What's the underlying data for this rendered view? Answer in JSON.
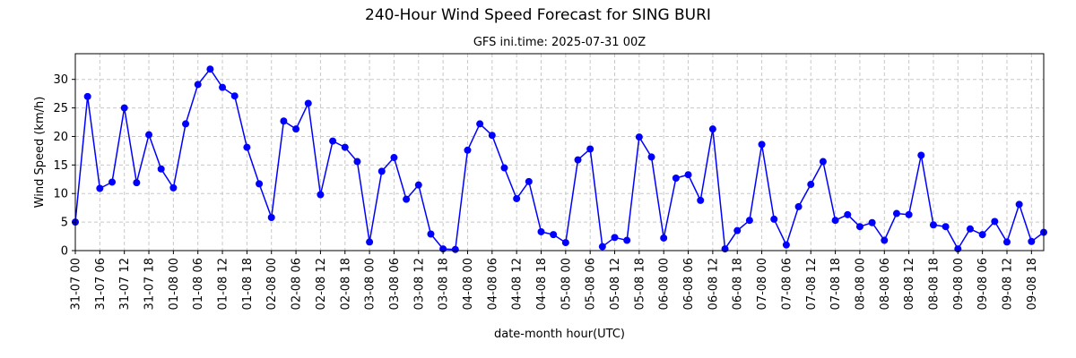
{
  "chart_data": {
    "type": "line",
    "title": "240-Hour Wind Speed Forecast for SING BURI",
    "subtitle": "GFS ini.time: 2025-07-31 00Z",
    "xlabel": "date-month hour(UTC)",
    "ylabel": "Wind Speed (km/h)",
    "ylim": [
      0,
      34.5
    ],
    "yticks": [
      0,
      5,
      10,
      15,
      20,
      25,
      30
    ],
    "grid": true,
    "grid_style": "dashed",
    "legend": false,
    "line_color": "#0000ff",
    "x_step_hours": 3,
    "x_ticks": [
      "31-07 00",
      "31-07 06",
      "31-07 12",
      "31-07 18",
      "01-08 00",
      "01-08 06",
      "01-08 12",
      "01-08 18",
      "02-08 00",
      "02-08 06",
      "02-08 12",
      "02-08 18",
      "03-08 00",
      "03-08 06",
      "03-08 12",
      "03-08 18",
      "04-08 00",
      "04-08 06",
      "04-08 12",
      "04-08 18",
      "05-08 00",
      "05-08 06",
      "05-08 12",
      "05-08 18",
      "06-08 00",
      "06-08 06",
      "06-08 12",
      "06-08 18",
      "07-08 00",
      "07-08 06",
      "07-08 12",
      "07-08 18",
      "08-08 00",
      "08-08 06",
      "08-08 12",
      "08-08 18",
      "09-08 00",
      "09-08 06",
      "09-08 12",
      "09-08 18"
    ],
    "series": [
      {
        "values": [
          5.0,
          27.0,
          10.9,
          12.0,
          25.0,
          11.9,
          20.3,
          14.3,
          11.0,
          22.2,
          29.1,
          31.8,
          28.6,
          27.1,
          18.1,
          11.7,
          5.8,
          22.7,
          21.3,
          25.8,
          9.8,
          19.2,
          18.1,
          15.6,
          1.5,
          13.9,
          16.3,
          9.0,
          11.5,
          2.9,
          0.3,
          0.2,
          17.6,
          22.2,
          20.2,
          14.5,
          9.1,
          12.1,
          3.3,
          2.8,
          1.4,
          15.9,
          17.8,
          0.7,
          2.3,
          1.8,
          19.9,
          16.4,
          2.2,
          12.7,
          13.3,
          8.8,
          21.3,
          0.3,
          3.5,
          5.3,
          18.6,
          5.5,
          1.0,
          7.7,
          11.6,
          15.6,
          5.3,
          6.3,
          4.2,
          4.9,
          1.8,
          6.5,
          6.3,
          16.7,
          4.5,
          4.2,
          0.3,
          3.8,
          2.8,
          5.1,
          1.5,
          8.1,
          1.6,
          3.2
        ]
      }
    ]
  }
}
